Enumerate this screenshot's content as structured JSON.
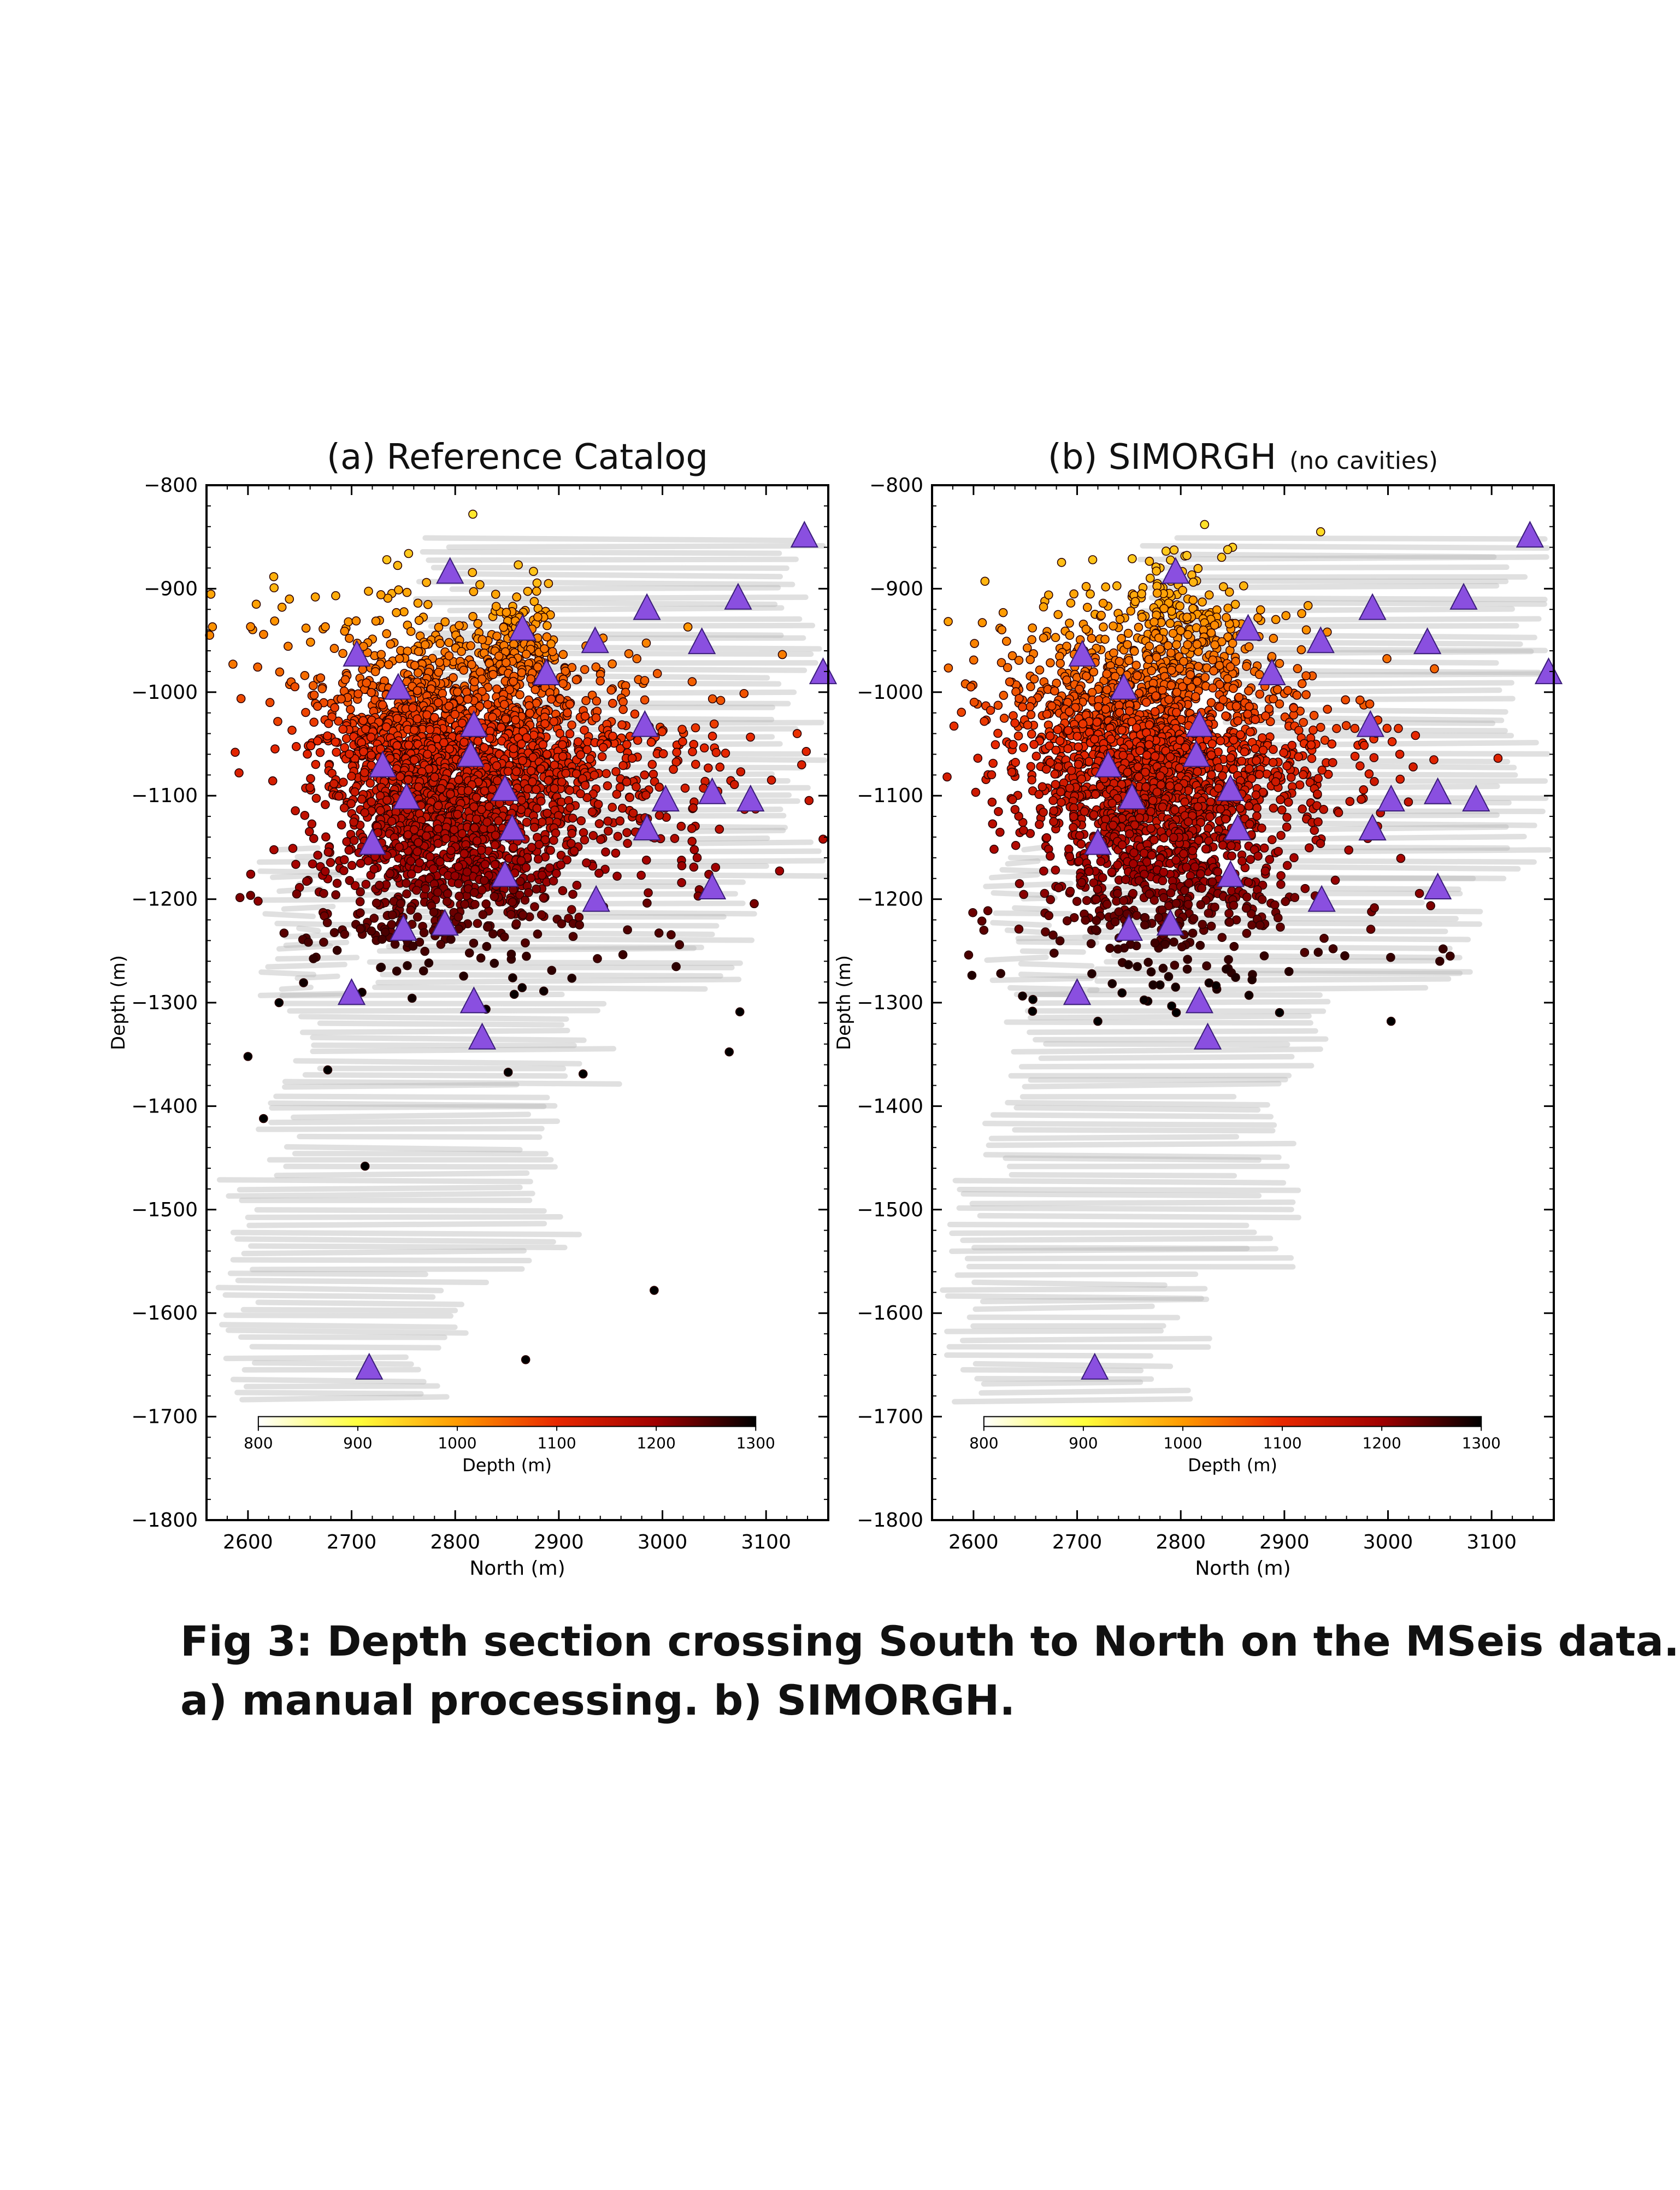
{
  "caption": {
    "line1": "Fig 3: Depth section crossing South to North on the MSeis data.",
    "line2": "a) manual processing. b) SIMORGH."
  },
  "colors": {
    "station": "#8a4fe0",
    "station_edge": "#3a1d7a",
    "background_points": "#b5b5b5",
    "colormap": [
      "#ffffff",
      "#ffff3c",
      "#ff9a00",
      "#e82800",
      "#a00000",
      "#000000"
    ]
  },
  "chart_data": [
    {
      "type": "scatter",
      "title": "(a) Reference Catalog",
      "title_suffix": "",
      "xlabel": "North (m)",
      "ylabel": "Depth (m)",
      "xlim": [
        2560,
        3160
      ],
      "ylim": [
        -1800,
        -800
      ],
      "xticks": [
        "2600",
        "2700",
        "2800",
        "2900",
        "3000",
        "3100"
      ],
      "xtick_values": [
        2600,
        2700,
        2800,
        2900,
        3000,
        3100
      ],
      "yticks": [
        "−800",
        "−900",
        "−1000",
        "−1100",
        "−1200",
        "−1300",
        "−1400",
        "−1500",
        "−1600",
        "−1700",
        "−1800"
      ],
      "ytick_values": [
        -800,
        -900,
        -1000,
        -1100,
        -1200,
        -1300,
        -1400,
        -1500,
        -1600,
        -1700,
        -1800
      ],
      "grid": false,
      "colorbar": {
        "label": "Depth (m)",
        "range": [
          800,
          1300
        ],
        "ticks": [
          "800",
          "900",
          "1000",
          "1100",
          "1200",
          "1300"
        ],
        "tick_values": [
          800,
          900,
          1000,
          1100,
          1200,
          1300
        ],
        "placement": "bottom-left inside"
      },
      "stations": [
        [
          3137,
          -850
        ],
        [
          2795,
          -885
        ],
        [
          2985,
          -920
        ],
        [
          3073,
          -910
        ],
        [
          2865,
          -940
        ],
        [
          2705,
          -965
        ],
        [
          2935,
          -952
        ],
        [
          3038,
          -953
        ],
        [
          2745,
          -997
        ],
        [
          2888,
          -983
        ],
        [
          3155,
          -982
        ],
        [
          2818,
          -1033
        ],
        [
          2983,
          -1033
        ],
        [
          2815,
          -1062
        ],
        [
          2730,
          -1072
        ],
        [
          2848,
          -1095
        ],
        [
          2753,
          -1103
        ],
        [
          3048,
          -1098
        ],
        [
          3003,
          -1105
        ],
        [
          3085,
          -1105
        ],
        [
          2855,
          -1133
        ],
        [
          2985,
          -1133
        ],
        [
          2720,
          -1147
        ],
        [
          2848,
          -1178
        ],
        [
          3048,
          -1190
        ],
        [
          2936,
          -1202
        ],
        [
          2750,
          -1230
        ],
        [
          2790,
          -1225
        ],
        [
          2700,
          -1292
        ],
        [
          2818,
          -1300
        ],
        [
          2826,
          -1335
        ],
        [
          2717,
          -1654
        ]
      ],
      "clusters": [
        {
          "center": [
            2782,
            -1070
          ],
          "spread": [
            55,
            60
          ],
          "count": 1500,
          "depth_mean": 1085,
          "depth_sd": 50
        },
        {
          "center": [
            2860,
            -1060
          ],
          "spread": [
            55,
            55
          ],
          "count": 500,
          "depth_mean": 1065,
          "depth_sd": 55
        },
        {
          "center": [
            2857,
            -958
          ],
          "spread": [
            18,
            22
          ],
          "count": 140,
          "depth_mean": 955,
          "depth_sd": 20
        },
        {
          "center": [
            2790,
            -1175
          ],
          "spread": [
            65,
            35
          ],
          "count": 380,
          "depth_mean": 1190,
          "depth_sd": 35
        },
        {
          "center": [
            2960,
            -1080
          ],
          "spread": [
            70,
            50
          ],
          "count": 220,
          "depth_mean": 1085,
          "depth_sd": 40
        },
        {
          "center": [
            2820,
            -1230
          ],
          "spread": [
            120,
            50
          ],
          "count": 100,
          "depth_mean": 1240,
          "depth_sd": 40
        },
        {
          "center": [
            2680,
            -980
          ],
          "spread": [
            70,
            50
          ],
          "count": 70,
          "depth_mean": 980,
          "depth_sd": 50
        }
      ],
      "outliers": [
        [
          2600,
          -1352
        ],
        [
          2615,
          -1412
        ],
        [
          2677,
          -1365
        ],
        [
          2713,
          -1458
        ],
        [
          2992,
          -1578
        ],
        [
          2868,
          -1645
        ],
        [
          2630,
          -1300
        ],
        [
          2710,
          -1290
        ],
        [
          2608,
          -915
        ],
        [
          2640,
          -910
        ],
        [
          2665,
          -908
        ],
        [
          2734,
          -872
        ],
        [
          2755,
          -866
        ],
        [
          2817,
          -828
        ],
        [
          2890,
          -895
        ],
        [
          2563,
          -945
        ],
        [
          3130,
          -1040
        ],
        [
          3155,
          -1142
        ]
      ]
    },
    {
      "type": "scatter",
      "title": "(b)  SIMORGH",
      "title_suffix": "(no cavities)",
      "xlabel": "North (m)",
      "ylabel": "Depth (m)",
      "xlim": [
        2560,
        3160
      ],
      "ylim": [
        -1800,
        -800
      ],
      "xticks": [
        "2600",
        "2700",
        "2800",
        "2900",
        "3000",
        "3100"
      ],
      "xtick_values": [
        2600,
        2700,
        2800,
        2900,
        3000,
        3100
      ],
      "yticks": [
        "−800",
        "−900",
        "−1000",
        "−1100",
        "−1200",
        "−1300",
        "−1400",
        "−1500",
        "−1600",
        "−1700",
        "−1800"
      ],
      "ytick_values": [
        -800,
        -900,
        -1000,
        -1100,
        -1200,
        -1300,
        -1400,
        -1500,
        -1600,
        -1700,
        -1800
      ],
      "grid": false,
      "colorbar": {
        "label": "Depth (m)",
        "range": [
          800,
          1300
        ],
        "ticks": [
          "800",
          "900",
          "1000",
          "1100",
          "1200",
          "1300"
        ],
        "tick_values": [
          800,
          900,
          1000,
          1100,
          1200,
          1300
        ],
        "placement": "bottom-left inside"
      },
      "stations": [
        [
          3137,
          -850
        ],
        [
          2795,
          -885
        ],
        [
          2985,
          -920
        ],
        [
          3073,
          -910
        ],
        [
          2865,
          -940
        ],
        [
          2705,
          -965
        ],
        [
          2935,
          -952
        ],
        [
          3038,
          -953
        ],
        [
          2745,
          -997
        ],
        [
          2888,
          -983
        ],
        [
          3155,
          -982
        ],
        [
          2818,
          -1033
        ],
        [
          2983,
          -1033
        ],
        [
          2815,
          -1062
        ],
        [
          2730,
          -1072
        ],
        [
          2848,
          -1095
        ],
        [
          2753,
          -1103
        ],
        [
          3048,
          -1098
        ],
        [
          3003,
          -1105
        ],
        [
          3085,
          -1105
        ],
        [
          2855,
          -1133
        ],
        [
          2985,
          -1133
        ],
        [
          2720,
          -1147
        ],
        [
          2848,
          -1178
        ],
        [
          3048,
          -1190
        ],
        [
          2936,
          -1202
        ],
        [
          2750,
          -1230
        ],
        [
          2790,
          -1225
        ],
        [
          2700,
          -1292
        ],
        [
          2818,
          -1300
        ],
        [
          2826,
          -1335
        ],
        [
          2717,
          -1654
        ]
      ],
      "clusters": [
        {
          "center": [
            2775,
            -1065
          ],
          "spread": [
            60,
            65
          ],
          "count": 1400,
          "depth_mean": 1075,
          "depth_sd": 55
        },
        {
          "center": [
            2805,
            -930
          ],
          "spread": [
            35,
            30
          ],
          "count": 150,
          "depth_mean": 930,
          "depth_sd": 25
        },
        {
          "center": [
            2700,
            -1020
          ],
          "spread": [
            60,
            55
          ],
          "count": 300,
          "depth_mean": 1010,
          "depth_sd": 50
        },
        {
          "center": [
            2790,
            -1180
          ],
          "spread": [
            60,
            40
          ],
          "count": 320,
          "depth_mean": 1195,
          "depth_sd": 40
        },
        {
          "center": [
            2900,
            -1060
          ],
          "spread": [
            60,
            45
          ],
          "count": 200,
          "depth_mean": 1060,
          "depth_sd": 45
        },
        {
          "center": [
            2820,
            -1240
          ],
          "spread": [
            110,
            40
          ],
          "count": 80,
          "depth_mean": 1245,
          "depth_sd": 40
        }
      ],
      "outliers": [
        [
          2715,
          -872
        ],
        [
          2780,
          -880
        ],
        [
          2823,
          -838
        ],
        [
          2850,
          -860
        ],
        [
          2935,
          -845
        ],
        [
          2668,
          -990
        ],
        [
          2720,
          -1318
        ],
        [
          2795,
          -1285
        ],
        [
          3003,
          -1318
        ],
        [
          3050,
          -1260
        ],
        [
          3060,
          -1255
        ],
        [
          2968,
          -1035
        ],
        [
          3010,
          -1035
        ],
        [
          2610,
          -1230
        ]
      ]
    }
  ]
}
